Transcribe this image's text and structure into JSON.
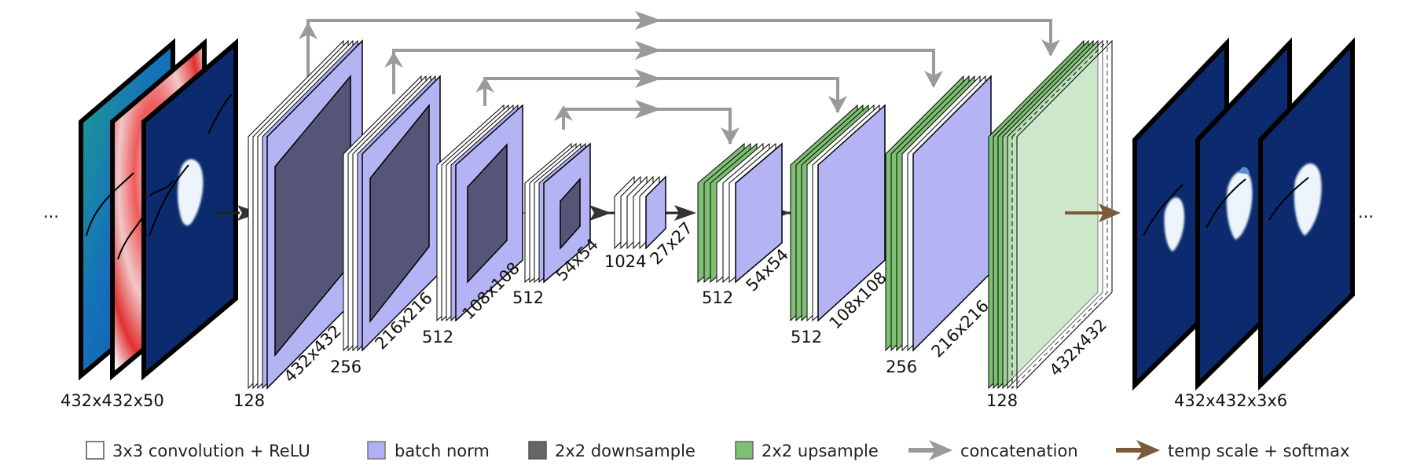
{
  "diagram": {
    "ellipsis": "...",
    "input": {
      "size_label": "432x432x50",
      "channels": [
        "green-colormap",
        "red-white-blue-colormap",
        "navy-ice-map"
      ]
    },
    "output": {
      "size_label": "432x432x3x6",
      "channels": [
        "navy-ice-map",
        "navy-ice-map",
        "navy-ice-map"
      ]
    },
    "encoder_blocks": [
      {
        "channels_label": "128",
        "size_label": "432x432"
      },
      {
        "channels_label": "256",
        "size_label": "216x216"
      },
      {
        "channels_label": "512",
        "size_label": "108x108"
      },
      {
        "channels_label": "512",
        "size_label": "54x54"
      }
    ],
    "bottleneck": {
      "channels_label": "1024",
      "size_label": "27x27"
    },
    "decoder_blocks": [
      {
        "channels_label": "512",
        "size_label": "54x54"
      },
      {
        "channels_label": "512",
        "size_label": "108x108"
      },
      {
        "channels_label": "256",
        "size_label": "216x216"
      },
      {
        "channels_label": "128",
        "size_label": "432x432"
      }
    ],
    "colors": {
      "conv": "#ffffff",
      "batch_norm": "#b4b4f5",
      "downsample": "#555577",
      "upsample": "#8fc98a",
      "concatenation": "#9a9a9a",
      "softmax": "#7a5c3c",
      "map_background": "#0a2a6a"
    }
  },
  "legend": [
    {
      "label": "3x3 convolution + ReLU",
      "swatch_color": "#ffffff",
      "kind": "swatch"
    },
    {
      "label": "batch norm",
      "swatch_color": "#b0b0f5",
      "kind": "swatch"
    },
    {
      "label": "2x2 downsample",
      "swatch_color": "#666666",
      "kind": "swatch"
    },
    {
      "label": "2x2 upsample",
      "swatch_color": "#7fbf73",
      "kind": "swatch"
    },
    {
      "label": "concatenation",
      "arrow_color": "#9a9a9a",
      "kind": "arrow"
    },
    {
      "label": "temp scale + softmax",
      "arrow_color": "#7a5c3c",
      "kind": "arrow"
    }
  ]
}
